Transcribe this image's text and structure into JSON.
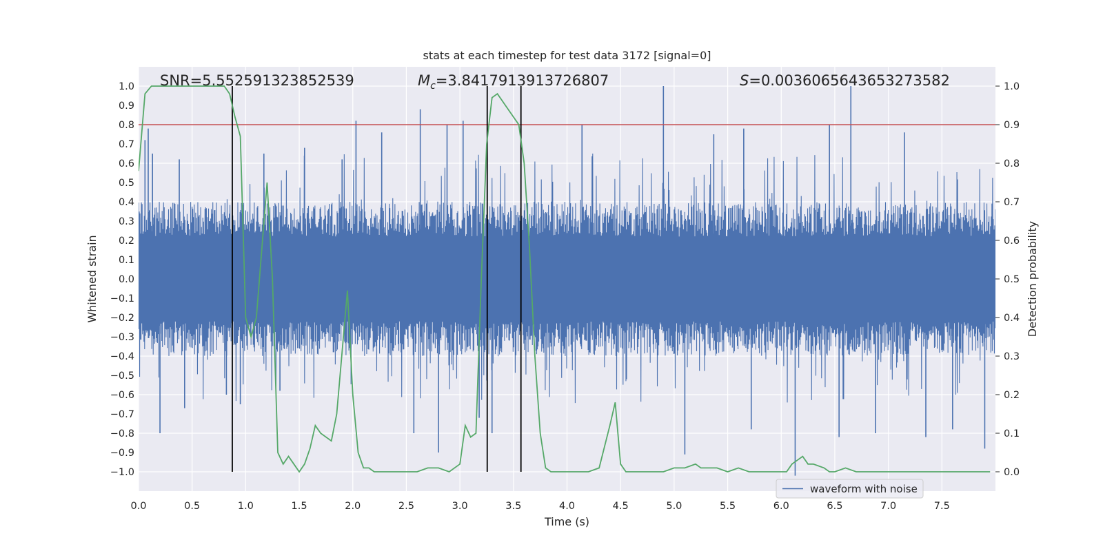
{
  "chart_data": {
    "type": "line",
    "title": "stats at each timestep for test data 3172 [signal=0]",
    "xlabel": "Time (s)",
    "ylabel": "Whitened strain",
    "y2label": "Detection probability",
    "xlim": [
      0.0,
      8.0
    ],
    "ylim": [
      -1.1,
      1.1
    ],
    "y2lim": [
      -0.05,
      1.05
    ],
    "xticks": [
      "0.0",
      "0.5",
      "1.0",
      "1.5",
      "2.0",
      "2.5",
      "3.0",
      "3.5",
      "4.0",
      "4.5",
      "5.0",
      "5.5",
      "6.0",
      "6.5",
      "7.0",
      "7.5"
    ],
    "yticks": [
      "1.0",
      "0.9",
      "0.8",
      "0.7",
      "0.6",
      "0.5",
      "0.4",
      "0.3",
      "0.2",
      "0.1",
      "0.0",
      "−0.1",
      "−0.2",
      "−0.3",
      "−0.4",
      "−0.5",
      "−0.6",
      "−0.7",
      "−0.8",
      "−0.9",
      "−1.0"
    ],
    "y2ticks": [
      "1.0",
      "0.9",
      "0.8",
      "0.7",
      "0.6",
      "0.5",
      "0.4",
      "0.3",
      "0.2",
      "0.1",
      "0.0"
    ],
    "annotations": {
      "snr": "SNR=5.552591323852539",
      "mc": "=3.8417913913726807",
      "mc_symbol": "M",
      "mc_sub": "c",
      "s": "=0.0036065643653273582",
      "s_symbol": "S"
    },
    "threshold": {
      "axis": "right",
      "value": 0.9,
      "color": "#c44e52"
    },
    "vlines": [
      0.875,
      3.255,
      3.57
    ],
    "waveform": {
      "name": "waveform with noise",
      "color": "#4c72b0",
      "axis": "left",
      "typical_envelope": 0.4,
      "peaks": [
        {
          "t": 0.06,
          "v": 0.72
        },
        {
          "t": 0.09,
          "v": 0.78
        },
        {
          "t": 0.13,
          "v": 0.65
        },
        {
          "t": 0.2,
          "v": -0.8
        },
        {
          "t": 0.38,
          "v": 0.62
        },
        {
          "t": 0.43,
          "v": -0.67
        },
        {
          "t": 0.82,
          "v": -0.6
        },
        {
          "t": 0.95,
          "v": -0.65
        },
        {
          "t": 1.17,
          "v": 0.65
        },
        {
          "t": 1.32,
          "v": -0.58
        },
        {
          "t": 1.55,
          "v": 0.68
        },
        {
          "t": 1.9,
          "v": 0.62
        },
        {
          "t": 2.03,
          "v": 0.82
        },
        {
          "t": 2.27,
          "v": 0.76
        },
        {
          "t": 2.57,
          "v": -0.8
        },
        {
          "t": 2.63,
          "v": 0.88
        },
        {
          "t": 2.8,
          "v": -0.9
        },
        {
          "t": 2.88,
          "v": 0.8
        },
        {
          "t": 3.03,
          "v": 0.82
        },
        {
          "t": 3.18,
          "v": -0.72
        },
        {
          "t": 3.3,
          "v": -0.8
        },
        {
          "t": 4.14,
          "v": 0.8
        },
        {
          "t": 4.9,
          "v": 1.0
        },
        {
          "t": 5.1,
          "v": -0.91
        },
        {
          "t": 5.37,
          "v": 0.75
        },
        {
          "t": 5.65,
          "v": 0.78
        },
        {
          "t": 5.72,
          "v": -0.78
        },
        {
          "t": 6.13,
          "v": -1.02
        },
        {
          "t": 6.45,
          "v": 0.8
        },
        {
          "t": 6.54,
          "v": -0.82
        },
        {
          "t": 6.65,
          "v": 1.0
        },
        {
          "t": 6.88,
          "v": -0.8
        },
        {
          "t": 7.15,
          "v": 0.76
        },
        {
          "t": 7.35,
          "v": -0.82
        },
        {
          "t": 7.6,
          "v": -0.78
        },
        {
          "t": 7.9,
          "v": -0.88
        }
      ]
    },
    "probability": {
      "name": "detection probability",
      "color": "#55a868",
      "axis": "right",
      "x": [
        0.0,
        0.06,
        0.12,
        0.2,
        0.3,
        0.4,
        0.5,
        0.6,
        0.7,
        0.8,
        0.85,
        0.9,
        0.95,
        1.0,
        1.05,
        1.1,
        1.2,
        1.25,
        1.3,
        1.35,
        1.4,
        1.45,
        1.5,
        1.55,
        1.6,
        1.65,
        1.7,
        1.8,
        1.85,
        1.95,
        2.0,
        2.05,
        2.1,
        2.15,
        2.2,
        2.3,
        2.4,
        2.5,
        2.6,
        2.7,
        2.8,
        2.9,
        3.0,
        3.05,
        3.1,
        3.15,
        3.2,
        3.25,
        3.3,
        3.35,
        3.4,
        3.45,
        3.55,
        3.6,
        3.65,
        3.7,
        3.75,
        3.8,
        3.85,
        3.9,
        4.0,
        4.1,
        4.2,
        4.3,
        4.4,
        4.45,
        4.5,
        4.55,
        4.6,
        4.7,
        4.8,
        4.9,
        5.0,
        5.1,
        5.2,
        5.25,
        5.3,
        5.4,
        5.5,
        5.6,
        5.7,
        5.8,
        5.9,
        6.0,
        6.05,
        6.1,
        6.15,
        6.2,
        6.25,
        6.3,
        6.4,
        6.45,
        6.5,
        6.6,
        6.7,
        6.8,
        6.9,
        7.0,
        7.2,
        7.4,
        7.6,
        7.8,
        7.95
      ],
      "y": [
        0.78,
        0.98,
        1.0,
        1.0,
        1.0,
        1.0,
        1.0,
        1.0,
        1.0,
        1.0,
        0.98,
        0.92,
        0.87,
        0.4,
        0.35,
        0.4,
        0.75,
        0.5,
        0.05,
        0.02,
        0.04,
        0.02,
        0.0,
        0.02,
        0.06,
        0.12,
        0.1,
        0.08,
        0.15,
        0.47,
        0.2,
        0.05,
        0.01,
        0.01,
        0.0,
        0.0,
        0.0,
        0.0,
        0.0,
        0.01,
        0.01,
        0.0,
        0.02,
        0.12,
        0.09,
        0.1,
        0.5,
        0.85,
        0.97,
        0.98,
        0.96,
        0.94,
        0.9,
        0.8,
        0.58,
        0.3,
        0.1,
        0.01,
        0.0,
        0.0,
        0.0,
        0.0,
        0.0,
        0.01,
        0.12,
        0.18,
        0.02,
        0.0,
        0.0,
        0.0,
        0.0,
        0.0,
        0.01,
        0.01,
        0.02,
        0.01,
        0.01,
        0.01,
        0.0,
        0.01,
        0.0,
        0.0,
        0.0,
        0.0,
        0.0,
        0.02,
        0.03,
        0.04,
        0.02,
        0.02,
        0.01,
        0.0,
        0.0,
        0.01,
        0.0,
        0.0,
        0.0,
        0.0,
        0.0,
        0.0,
        0.0,
        0.0,
        0.0
      ]
    },
    "legend": {
      "location": "lower-right",
      "entries": [
        "waveform with noise"
      ]
    }
  }
}
